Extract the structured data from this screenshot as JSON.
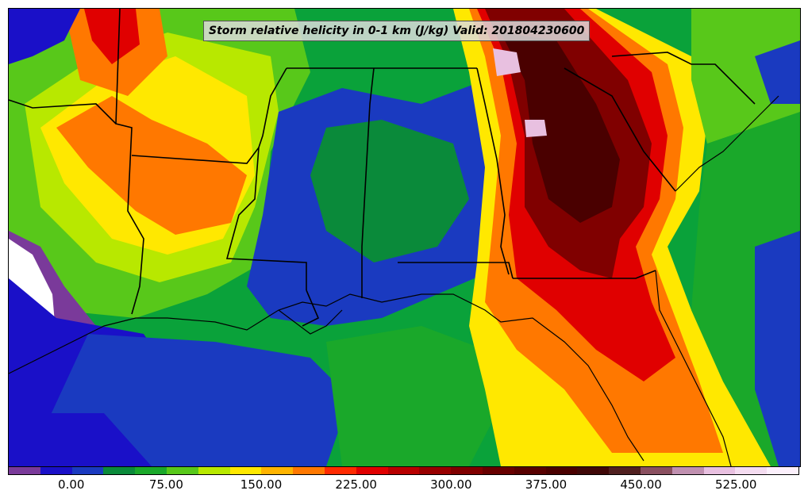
{
  "title": "Storm relative helicity in 0-1 km (J/kg) Valid: 201804230600",
  "colorbar": {
    "colors": [
      "#7a3a9a",
      "#1a10c8",
      "#1a3ac0",
      "#0a8a3a",
      "#1aa82a",
      "#58c81a",
      "#b8e800",
      "#ffe800",
      "#ffb400",
      "#ff7800",
      "#ff2a00",
      "#e00000",
      "#b80000",
      "#980000",
      "#800000",
      "#680000",
      "#580000",
      "#4a0000",
      "#400808",
      "#502020",
      "#8a5060",
      "#c090b0",
      "#e8c0e0",
      "#f4dcf0",
      "#fcf0fc"
    ],
    "tick_labels": [
      "0.00",
      "75.00",
      "150.00",
      "225.00",
      "300.00",
      "375.00",
      "450.00",
      "525.00"
    ]
  },
  "map": {
    "field_colors": {
      "purple": "#7a3a9a",
      "blue": "#1a10c8",
      "dark_blue": "#1a3ac0",
      "green": "#0a8a3a",
      "light_green": "#58c81a",
      "yellow_green": "#b8e800",
      "yellow": "#ffe800",
      "orange": "#ff7800",
      "red": "#e00000",
      "dark_red": "#800000",
      "very_dark_red": "#4a0000",
      "pink": "#e8c0e0",
      "white": "#ffffff"
    }
  }
}
